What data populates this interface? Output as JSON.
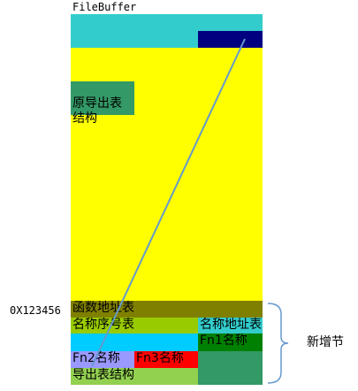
{
  "title": "FileBuffer",
  "colors": {
    "header": "#33cccc",
    "header_block": "#000080",
    "body": "#ffff00",
    "green_block": "#339966",
    "func_table": "#808000",
    "ordinal_table": "#99cc00",
    "name_addr_table": "#33cccc",
    "cyan_band": "#00ccff",
    "fn1": "#008000",
    "fn2": "#9999ff",
    "fn3": "#ff0000",
    "export_struct": "#92d050",
    "arrow": "#6699cc"
  },
  "labels": {
    "orig_export": "原导出表\n结构",
    "address": "0X123456",
    "func_addr_table": "函数地址表",
    "ordinal_table": "名称序号表",
    "name_addr_table": "名称地址表",
    "fn1_name": "Fn1名称",
    "fn2_name": "Fn2名称",
    "fn3_name": "Fn3名称",
    "export_struct": "导出表结构",
    "new_section": "新增节"
  }
}
